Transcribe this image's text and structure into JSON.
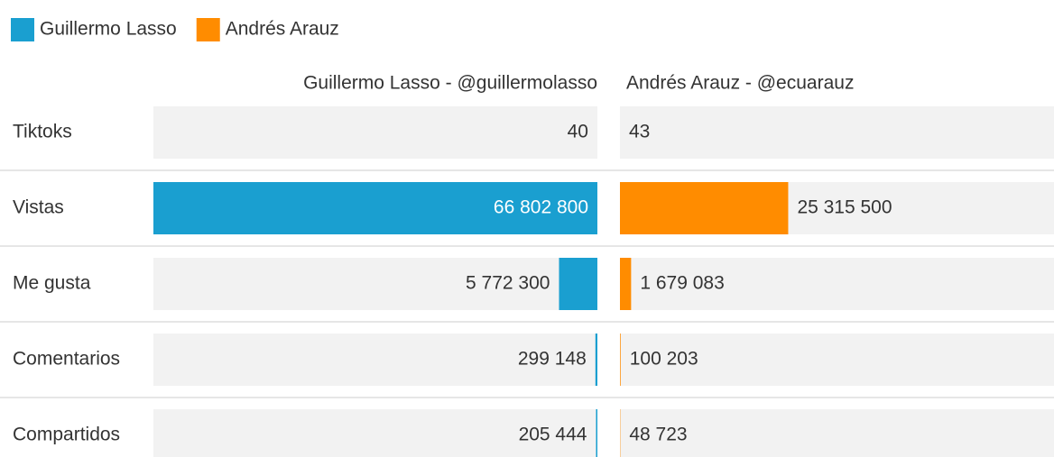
{
  "chart_data": {
    "type": "bar",
    "categories": [
      "Tiktoks",
      "Vistas",
      "Me gusta",
      "Comentarios",
      "Compartidos"
    ],
    "column_titles": [
      "Guillermo Lasso - @guillermolasso",
      "Andrés Arauz - @ecuarauz"
    ],
    "series": [
      {
        "name": "Guillermo Lasso",
        "color": "#1a9fd0",
        "values": [
          40,
          66802800,
          5772300,
          299148,
          205444
        ],
        "value_labels": [
          "40",
          "66 802 800",
          "5 772 300",
          "299 148",
          "205 444"
        ]
      },
      {
        "name": "Andrés Arauz",
        "color": "#ff8c00",
        "values": [
          43,
          25315500,
          1679083,
          100203,
          48723
        ],
        "value_labels": [
          "43",
          "25 315 500",
          "1 679 083",
          "100 203",
          "48 723"
        ]
      }
    ],
    "legend": "top-left"
  }
}
